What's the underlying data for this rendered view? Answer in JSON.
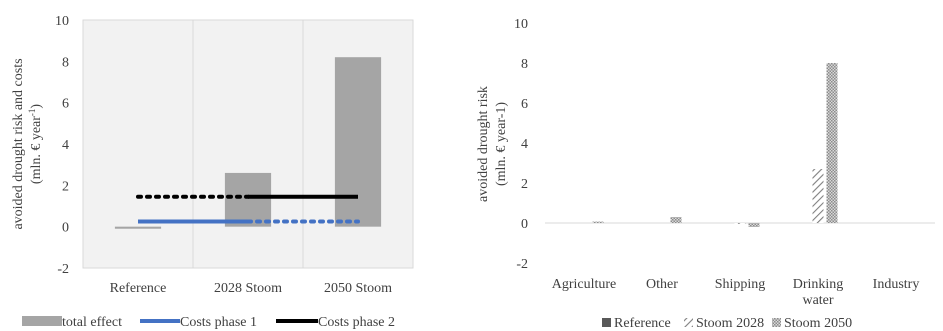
{
  "chart_data": [
    {
      "type": "bar",
      "categories": [
        "Reference",
        "2028 Stoom",
        "2050 Stoom"
      ],
      "ylim": [
        -2,
        10
      ],
      "yticks": [
        -2,
        0,
        2,
        4,
        6,
        8,
        10
      ],
      "ylabel_line1": "avoided drought risk and costs",
      "ylabel_line2_prefix": "(mln. € year",
      "ylabel_line2_sup": "-1",
      "ylabel_line2_suffix": ")",
      "grid": "vertical",
      "legend_position": "bottom",
      "bars": {
        "name": "total effect",
        "color": "#a5a5a5",
        "values": [
          -0.1,
          2.6,
          8.2
        ]
      },
      "lines": [
        {
          "name": "Costs phase 1",
          "color": "#4472c4",
          "solid_from": 0.5,
          "solid_to": 1.5,
          "dotted_from": 1.5,
          "dotted_to": 2.5,
          "value": 0.25
        },
        {
          "name": "Costs phase 2",
          "color": "#000000",
          "dotted_from": 0.5,
          "dotted_to": 1.5,
          "solid_from": 1.5,
          "solid_to": 2.5,
          "value": 1.45
        }
      ],
      "legend": [
        "total effect",
        "Costs phase 1",
        "Costs phase 2"
      ]
    },
    {
      "type": "bar",
      "categories": [
        "Agriculture",
        "Other",
        "Shipping",
        "Drinking water",
        "Industry"
      ],
      "category_lines": [
        [
          "Agriculture"
        ],
        [
          "Other"
        ],
        [
          "Shipping"
        ],
        [
          "Drinking",
          "water"
        ],
        [
          "Industry"
        ]
      ],
      "ylim": [
        -2,
        10
      ],
      "yticks": [
        -2,
        0,
        2,
        4,
        6,
        8,
        10
      ],
      "ylabel_line1": "avoided drought risk",
      "ylabel_line2": "(mln. € year-1)",
      "grid": "none",
      "legend_position": "bottom",
      "series": [
        {
          "name": "Reference",
          "pattern": "solid",
          "color": "#595959",
          "values": [
            0,
            0,
            0,
            0,
            0
          ]
        },
        {
          "name": "Stoom 2028",
          "pattern": "diagonal",
          "color": "#7f7f7f",
          "values": [
            0,
            0,
            -0.05,
            2.7,
            0
          ]
        },
        {
          "name": "Stoom 2050",
          "pattern": "dots",
          "color": "#a5a5a5",
          "values": [
            0.07,
            0.3,
            -0.2,
            8.0,
            0
          ]
        }
      ],
      "legend": [
        "Reference",
        "Stoom 2028",
        "Stoom 2050"
      ]
    }
  ]
}
